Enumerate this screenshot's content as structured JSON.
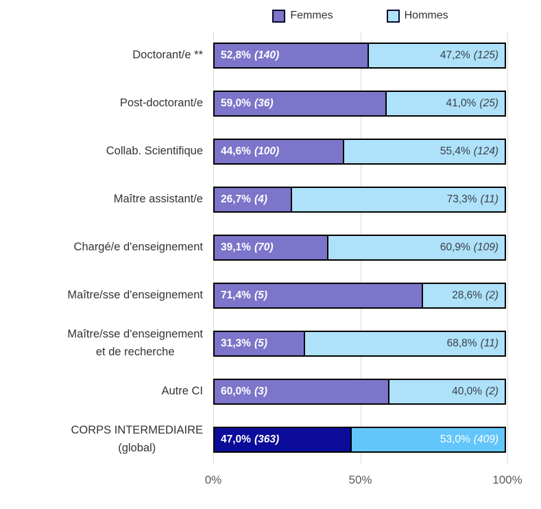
{
  "colors": {
    "femmes": "#7c75ca",
    "hommes": "#aee1fa",
    "femmes_total": "#0c0c9a",
    "hommes_total": "#63c6fa",
    "bar_border": "#000000",
    "gridline": "#d9d9d9",
    "femmes_label_text": "#ffffff",
    "hommes_label_text": "#3a3f46",
    "category_text": "#333333",
    "axis_text": "#595959"
  },
  "legend": {
    "items": [
      {
        "label": "Femmes",
        "color_key": "femmes"
      },
      {
        "label": "Hommes",
        "color_key": "hommes"
      }
    ]
  },
  "chart_data": {
    "type": "bar",
    "orientation": "horizontal",
    "stacked": true,
    "title": "",
    "xlabel": "",
    "ylabel": "",
    "xlim": [
      0,
      100
    ],
    "x_ticks": [
      "0%",
      "50%",
      "100%"
    ],
    "grid": true,
    "legend_position": "top",
    "series_names": [
      "Femmes",
      "Hommes"
    ],
    "rows": [
      {
        "category_lines": [
          "Doctorant/e **"
        ],
        "femmes": {
          "pct": 52.8,
          "count": 140,
          "label": "52,8%",
          "count_label": "(140)"
        },
        "hommes": {
          "pct": 47.2,
          "count": 125,
          "label": "47,2%",
          "count_label": "(125)"
        },
        "highlight": false
      },
      {
        "category_lines": [
          "Post-doctorant/e"
        ],
        "femmes": {
          "pct": 59.0,
          "count": 36,
          "label": "59,0%",
          "count_label": "(36)"
        },
        "hommes": {
          "pct": 41.0,
          "count": 25,
          "label": "41,0%",
          "count_label": "(25)"
        },
        "highlight": false
      },
      {
        "category_lines": [
          "Collab. Scientifique"
        ],
        "femmes": {
          "pct": 44.6,
          "count": 100,
          "label": "44,6%",
          "count_label": "(100)"
        },
        "hommes": {
          "pct": 55.4,
          "count": 124,
          "label": "55,4%",
          "count_label": "(124)"
        },
        "highlight": false
      },
      {
        "category_lines": [
          "Maître assistant/e"
        ],
        "femmes": {
          "pct": 26.7,
          "count": 4,
          "label": "26,7%",
          "count_label": "(4)"
        },
        "hommes": {
          "pct": 73.3,
          "count": 11,
          "label": "73,3%",
          "count_label": "(11)"
        },
        "highlight": false
      },
      {
        "category_lines": [
          "Chargé/e d'enseignement"
        ],
        "femmes": {
          "pct": 39.1,
          "count": 70,
          "label": "39,1%",
          "count_label": "(70)"
        },
        "hommes": {
          "pct": 60.9,
          "count": 109,
          "label": "60,9%",
          "count_label": "(109)"
        },
        "highlight": false
      },
      {
        "category_lines": [
          "Maître/sse d'enseignement"
        ],
        "femmes": {
          "pct": 71.4,
          "count": 5,
          "label": "71,4%",
          "count_label": "(5)"
        },
        "hommes": {
          "pct": 28.6,
          "count": 2,
          "label": "28,6%",
          "count_label": "(2)"
        },
        "highlight": false
      },
      {
        "category_lines": [
          "Maître/sse d'enseignement",
          "et de recherche"
        ],
        "femmes": {
          "pct": 31.3,
          "count": 5,
          "label": "31,3%",
          "count_label": "(5)"
        },
        "hommes": {
          "pct": 68.8,
          "count": 11,
          "label": "68,8%",
          "count_label": "(11)"
        },
        "highlight": false
      },
      {
        "category_lines": [
          "Autre CI"
        ],
        "femmes": {
          "pct": 60.0,
          "count": 3,
          "label": "60,0%",
          "count_label": "(3)"
        },
        "hommes": {
          "pct": 40.0,
          "count": 2,
          "label": "40,0%",
          "count_label": "(2)"
        },
        "highlight": false
      },
      {
        "category_lines": [
          "CORPS INTERMEDIAIRE",
          "(global)"
        ],
        "femmes": {
          "pct": 47.0,
          "count": 363,
          "label": "47,0%",
          "count_label": "(363)"
        },
        "hommes": {
          "pct": 53.0,
          "count": 409,
          "label": "53,0%",
          "count_label": "(409)"
        },
        "highlight": true
      }
    ]
  }
}
